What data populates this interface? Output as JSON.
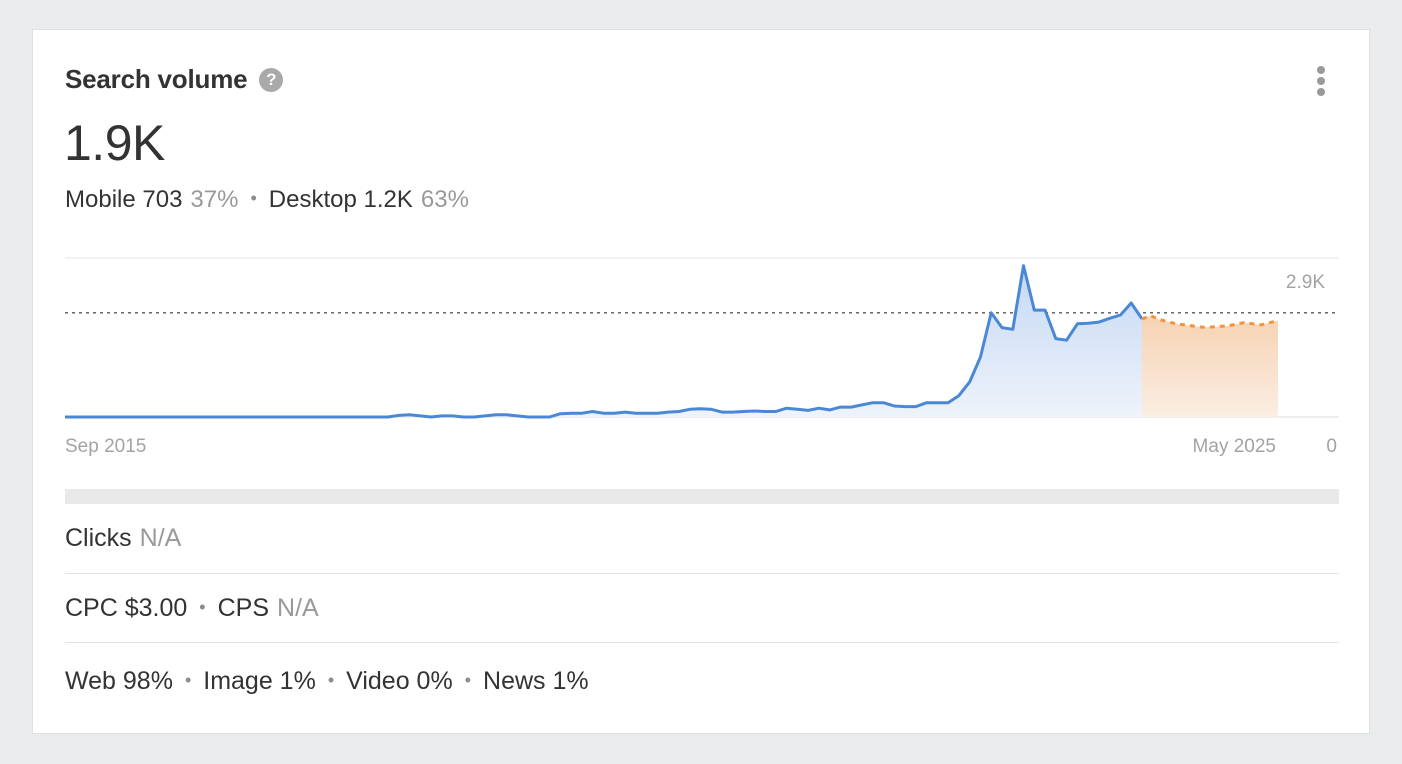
{
  "header": {
    "title": "Search volume",
    "help_icon": "?",
    "menu_icon_name": "more-vertical-icon"
  },
  "summary": {
    "total": "1.9K",
    "mobile_label": "Mobile 703",
    "mobile_pct": "37%",
    "desktop_label": "Desktop 1.2K",
    "desktop_pct": "63%"
  },
  "chart_data": {
    "type": "area",
    "x_start_label": "Sep 2015",
    "x_end_label": "May 2025",
    "y_max_label": "2.9K",
    "y_min_label": "0",
    "ylim": [
      0,
      2900
    ],
    "reference_line": 1900,
    "history_color": "#4a88d6",
    "forecast_color": "#f0953e",
    "history": [
      0,
      0,
      0,
      0,
      0,
      0,
      0,
      0,
      0,
      0,
      0,
      0,
      0,
      0,
      0,
      0,
      0,
      0,
      0,
      0,
      0,
      0,
      0,
      0,
      0,
      0,
      0,
      0,
      0,
      0,
      0,
      30,
      40,
      20,
      0,
      20,
      20,
      0,
      0,
      20,
      40,
      40,
      20,
      0,
      0,
      0,
      60,
      70,
      70,
      100,
      70,
      70,
      90,
      70,
      70,
      70,
      90,
      100,
      140,
      150,
      140,
      90,
      90,
      100,
      110,
      100,
      100,
      160,
      140,
      120,
      160,
      130,
      180,
      180,
      220,
      260,
      260,
      200,
      190,
      190,
      260,
      260,
      260,
      390,
      640,
      1090,
      1900,
      1630,
      1600,
      2760,
      1950,
      1950,
      1430,
      1400,
      1700,
      1710,
      1730,
      1800,
      1860,
      2080,
      1790
    ],
    "forecast": [
      1850,
      1780,
      1740,
      1700,
      1680,
      1660,
      1640,
      1640,
      1650,
      1660,
      1690,
      1720,
      1700,
      1680,
      1720,
      1760
    ]
  },
  "metrics": {
    "clicks_label": "Clicks",
    "clicks_value": "N/A",
    "cpc_label": "CPC $3.00",
    "cps_label": "CPS",
    "cps_value": "N/A",
    "web": "Web 98%",
    "image": "Image 1%",
    "video": "Video 0%",
    "news": "News 1%"
  },
  "separator": "•"
}
